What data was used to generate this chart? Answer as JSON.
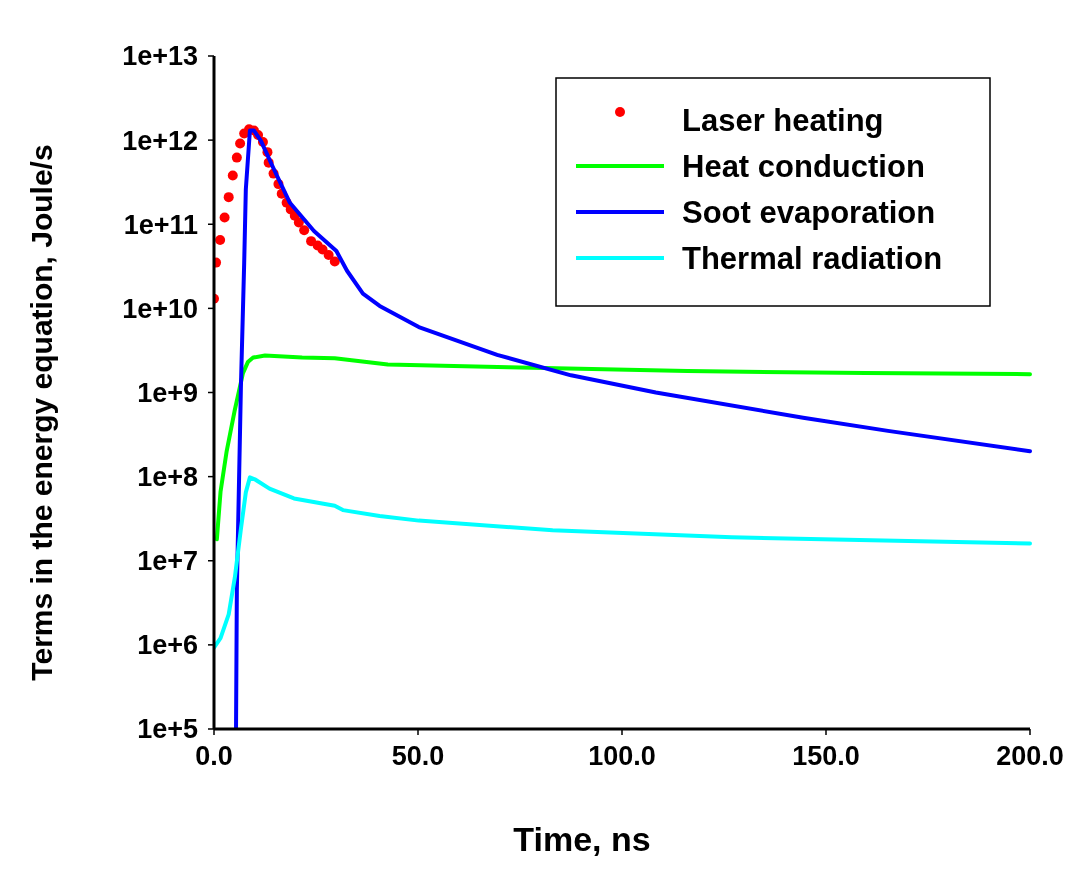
{
  "chart_data": {
    "type": "line",
    "xlabel": "Time, ns",
    "ylabel": "Terms in the energy equation, Joule/s",
    "log": "y",
    "grid": false,
    "legend": "top right",
    "xlim": [
      0,
      200
    ],
    "ylim": [
      100000.0,
      10000000000000.0
    ],
    "xticks": [
      {
        "value": 0,
        "label": "0.0"
      },
      {
        "value": 50,
        "label": "50.0"
      },
      {
        "value": 100,
        "label": "100.0"
      },
      {
        "value": 150,
        "label": "150.0"
      },
      {
        "value": 200,
        "label": "200.0"
      }
    ],
    "yticks": [
      {
        "value": 100000.0,
        "label": "1e+5"
      },
      {
        "value": 1000000.0,
        "label": "1e+6"
      },
      {
        "value": 10000000.0,
        "label": "1e+7"
      },
      {
        "value": 100000000.0,
        "label": "1e+8"
      },
      {
        "value": 1000000000.0,
        "label": "1e+9"
      },
      {
        "value": 10000000000.0,
        "label": "1e+10"
      },
      {
        "value": 100000000000.0,
        "label": "1e+11"
      },
      {
        "value": 1000000000000.0,
        "label": "1e+12"
      },
      {
        "value": 10000000000000.0,
        "label": "1e+13"
      }
    ],
    "series": [
      {
        "name": "Laser heating",
        "type": "scatter",
        "marker": "circle",
        "color": "#ff0000",
        "x": [
          0,
          0.5,
          1.5,
          2.6,
          3.6,
          4.6,
          5.6,
          6.4,
          7.4,
          8.6,
          9.8,
          10.8,
          12,
          13.1,
          13.4,
          14.6,
          15.8,
          16.6,
          17.8,
          18.8,
          19.8,
          20.8,
          22.1,
          23.8,
          25.4,
          26.6,
          28.1,
          29.6
        ],
        "values": [
          13000000000.0,
          35000000000.0,
          65000000000.0,
          120000000000.0,
          210000000000.0,
          380000000000.0,
          620000000000.0,
          910000000000.0,
          1200000000000.0,
          1350000000000.0,
          1300000000000.0,
          1150000000000.0,
          950000000000.0,
          720000000000.0,
          540000000000.0,
          400000000000.0,
          300000000000.0,
          230000000000.0,
          180000000000.0,
          150000000000.0,
          126000000000.0,
          105000000000.0,
          85000000000.0,
          63000000000.0,
          56000000000.0,
          50000000000.0,
          43000000000.0,
          36000000000.0
        ]
      },
      {
        "name": "Heat conduction",
        "type": "line",
        "color": "#00ff00",
        "x": [
          0.7,
          1.6,
          3.1,
          5.1,
          7.1,
          8.3,
          9.6,
          12.5,
          21.6,
          29.6,
          42.6,
          72.2,
          116,
          159.7,
          200
        ],
        "values": [
          18000000.0,
          66000000.0,
          200000000.0,
          620000000.0,
          1700000000.0,
          2300000000.0,
          2600000000.0,
          2750000000.0,
          2600000000.0,
          2550000000.0,
          2150000000.0,
          2000000000.0,
          1800000000.0,
          1700000000.0,
          1650000000.0
        ]
      },
      {
        "name": "Soot evaporation",
        "type": "line",
        "color": "#0000ff",
        "x": [
          5.4,
          5.6,
          6.6,
          7.4,
          7.8,
          8.8,
          9.8,
          11.5,
          14.6,
          18.6,
          24.5,
          30,
          32.6,
          36.5,
          40.6,
          50.2,
          69.4,
          87.5,
          108.3,
          144.4,
          165.2,
          200
        ],
        "values": [
          100000.0,
          4500000.0,
          1200000000.0,
          35000000000.0,
          260000000000.0,
          1300000000000.0,
          1300000000000.0,
          980000000000.0,
          460000000000.0,
          180000000000.0,
          83000000000.0,
          48000000000.0,
          28000000000.0,
          15000000000.0,
          10700000000.0,
          6000000000.0,
          2800000000.0,
          1600000000.0,
          1000000000.0,
          500000000.0,
          350000000.0,
          200000000.0
        ]
      },
      {
        "name": "Thermal radiation",
        "type": "line",
        "color": "#00ffff",
        "x": [
          0,
          1.6,
          3.6,
          5.1,
          6.6,
          7.8,
          8.8,
          10,
          13.6,
          19.6,
          29.6,
          31.6,
          40.6,
          50.2,
          83,
          126.9,
          200
        ],
        "values": [
          930000.0,
          1200000.0,
          2300000.0,
          6300000.0,
          24000000.0,
          65000000.0,
          98000000.0,
          93000000.0,
          72000000.0,
          55000000.0,
          45000000.0,
          40000000.0,
          34000000.0,
          30000000.0,
          23000000.0,
          19000000.0,
          16000000.0
        ]
      }
    ]
  }
}
